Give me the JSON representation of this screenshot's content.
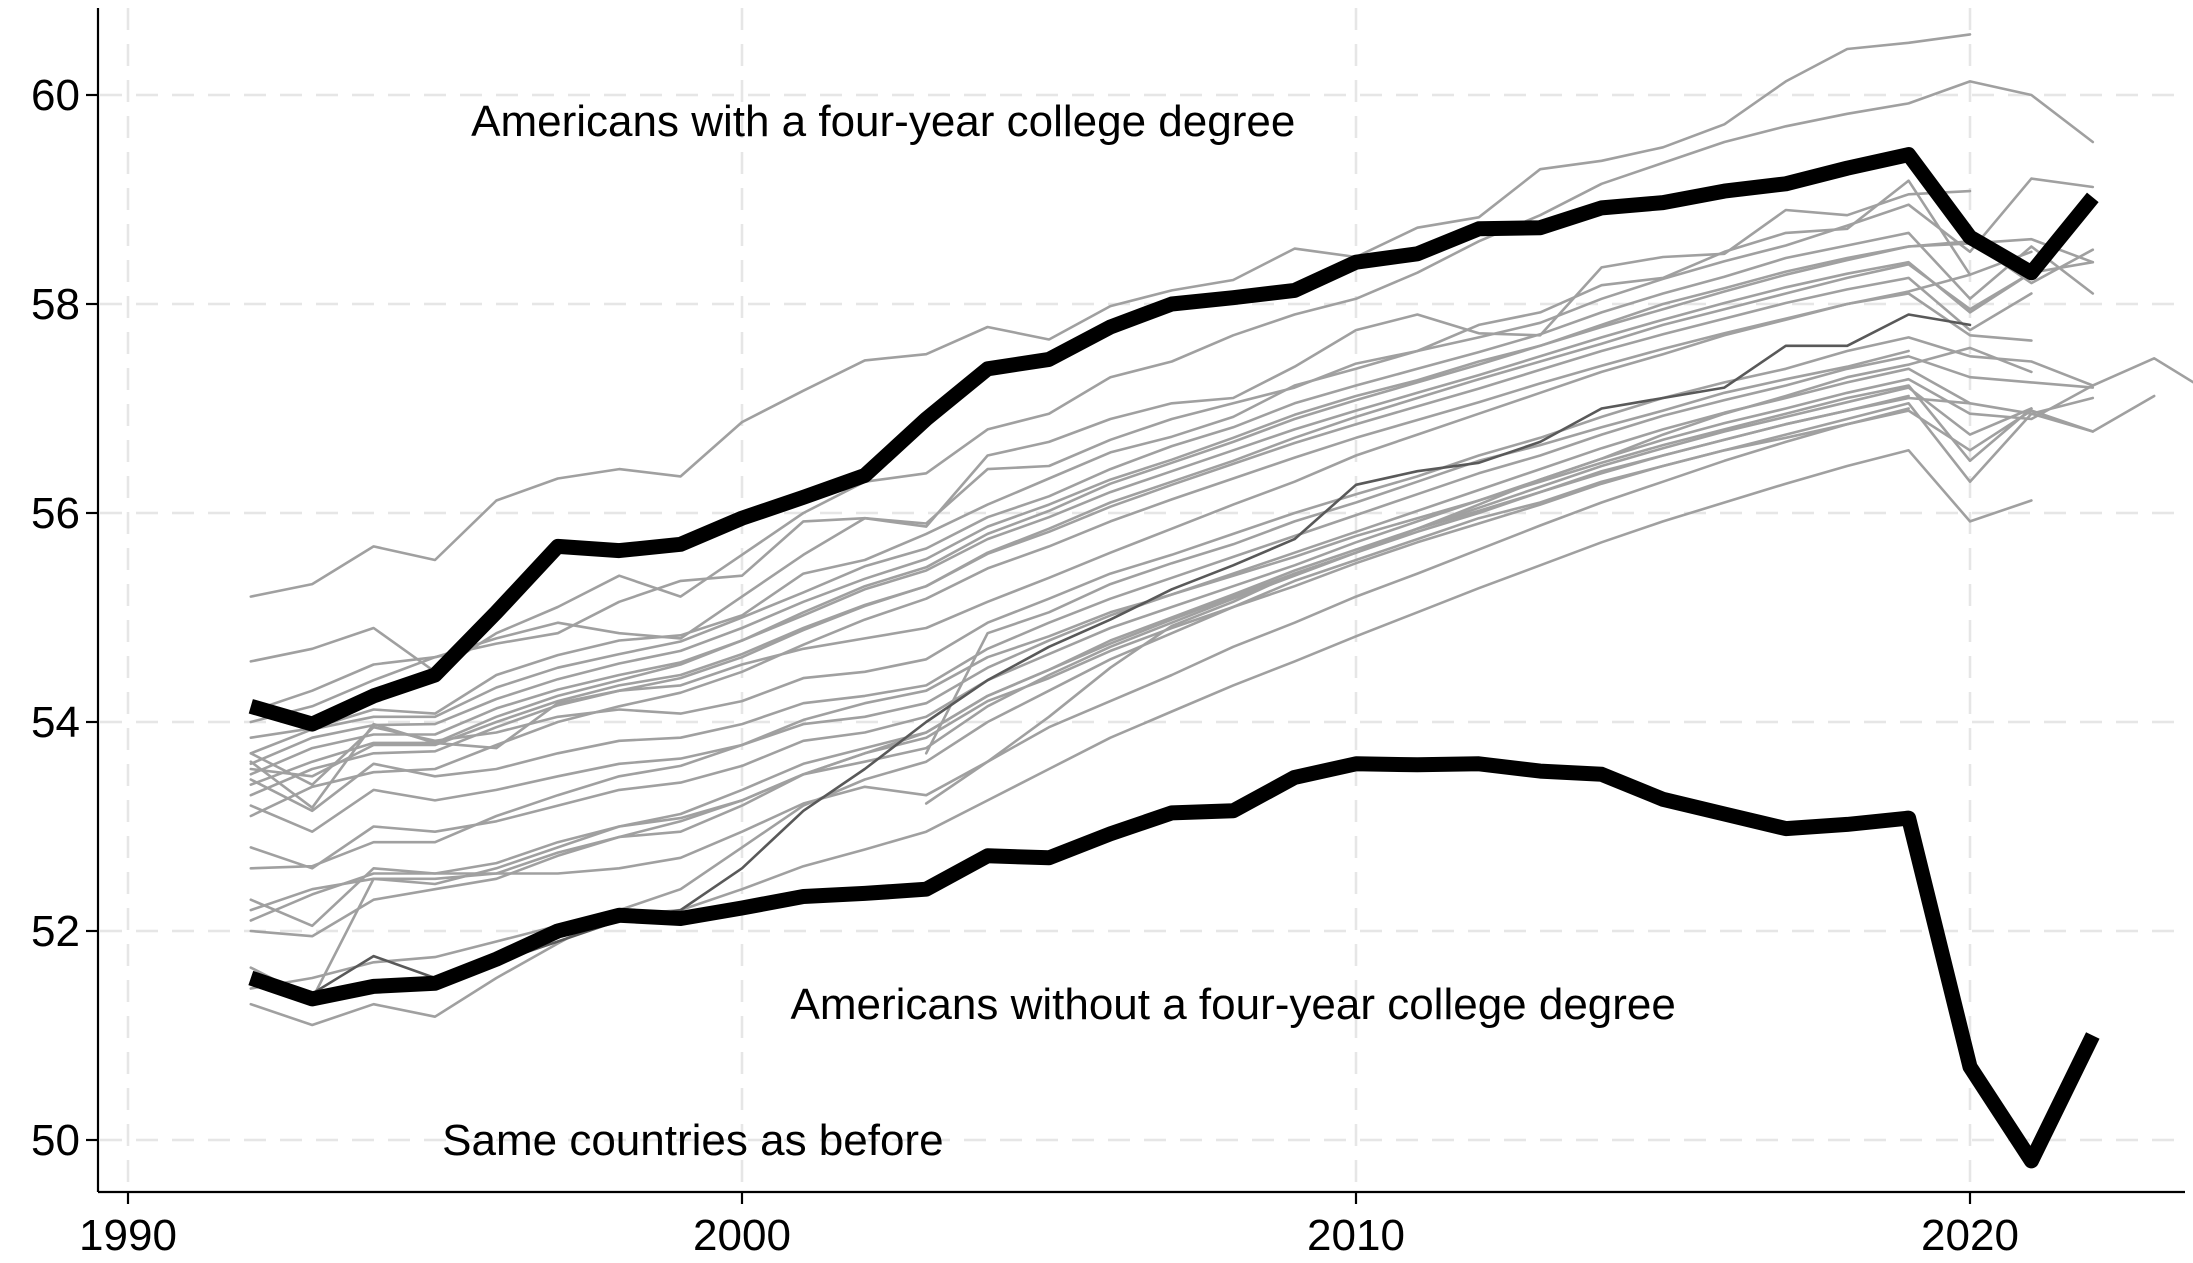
{
  "chart_data": {
    "type": "line",
    "title": "",
    "xlabel": "",
    "ylabel": "",
    "xlim": [
      1989.5,
      2023.5
    ],
    "ylim": [
      49.65,
      60.8
    ],
    "grid": true,
    "legend": "none",
    "x_ticks": [
      1990,
      2000,
      2010,
      2020
    ],
    "x_tick_labels": [
      "1990",
      "2000",
      "2010",
      "2020"
    ],
    "y_ticks": [
      50,
      52,
      54,
      56,
      58,
      60
    ],
    "y_tick_labels": [
      "50",
      "52",
      "54",
      "56",
      "58",
      "60"
    ],
    "annotations": [
      {
        "text": "Americans with a four-year college degree",
        "x": 2002.3,
        "y": 59.75
      },
      {
        "text": "Americans without a four-year college degree",
        "x": 2008.0,
        "y": 51.3
      },
      {
        "text": "Same countries as before",
        "x": 1999.2,
        "y": 50.0
      }
    ],
    "colors": {
      "highlight": "#000000",
      "background_series": "#a0a0a0",
      "dark_series": "#595959",
      "grid": "#e6e6e6"
    },
    "series": [
      {
        "role": "highlight",
        "start": 1992,
        "values": [
          54.15,
          53.98,
          54.25,
          54.45,
          55.05,
          55.68,
          55.64,
          55.7,
          55.95,
          56.15,
          56.36,
          56.9,
          57.38,
          57.47,
          57.78,
          58.0,
          58.06,
          58.13,
          58.4,
          58.48,
          58.72,
          58.73,
          58.92,
          58.97,
          59.08,
          59.15,
          59.3,
          59.43,
          58.64,
          58.3,
          59.02
        ]
      },
      {
        "role": "highlight",
        "start": 1992,
        "values": [
          51.55,
          51.35,
          51.47,
          51.5,
          51.73,
          52.0,
          52.15,
          52.12,
          52.22,
          52.33,
          52.36,
          52.4,
          52.72,
          52.7,
          52.93,
          53.13,
          53.15,
          53.47,
          53.6,
          53.59,
          53.6,
          53.53,
          53.5,
          53.26,
          53.12,
          52.98,
          53.02,
          53.08,
          50.7,
          49.8,
          51.0
        ]
      },
      {
        "role": "dark",
        "start": 1992,
        "values": [
          51.5,
          51.4,
          51.76,
          51.55,
          51.7,
          51.9,
          52.1,
          52.2,
          52.6,
          53.15,
          53.55,
          54.0,
          54.4,
          54.72,
          54.98,
          55.27,
          55.5,
          55.75,
          56.27,
          56.4,
          56.48,
          56.68,
          57.0,
          57.1,
          57.2,
          57.6,
          57.6,
          57.9,
          57.8
        ]
      },
      {
        "role": "background",
        "start": 1992,
        "values": [
          55.2,
          55.32,
          55.68,
          55.55,
          56.12,
          56.33,
          56.42,
          56.35,
          56.87,
          57.17,
          57.46,
          57.52,
          57.78,
          57.66,
          57.98,
          58.13,
          58.23,
          58.53,
          58.45,
          58.73,
          58.83,
          59.29,
          59.37,
          59.5,
          59.72,
          60.13,
          60.44,
          60.5,
          60.58
        ]
      },
      {
        "role": "background",
        "start": 1992,
        "values": [
          54.58,
          54.7,
          54.9,
          54.48,
          54.85,
          55.1,
          55.4,
          55.2,
          55.6,
          56.0,
          56.3,
          56.38,
          56.8,
          56.95,
          57.3,
          57.45,
          57.7,
          57.9,
          58.05,
          58.3,
          58.6,
          58.85,
          59.15,
          59.35,
          59.55,
          59.7,
          59.82,
          59.92,
          60.13,
          60.0,
          59.55
        ]
      },
      {
        "role": "background",
        "start": 1992,
        "values": [
          54.0,
          54.15,
          54.4,
          54.62,
          54.75,
          54.85,
          55.15,
          55.35,
          55.4,
          55.92,
          55.95,
          55.87,
          56.55,
          56.68,
          56.9,
          57.05,
          57.1,
          57.4,
          57.75,
          57.9,
          57.72,
          57.7,
          58.35,
          58.45,
          58.48,
          58.9,
          58.85,
          59.05,
          59.08
        ]
      },
      {
        "role": "background",
        "start": 1992,
        "values": [
          54.1,
          54.3,
          54.55,
          54.62,
          54.8,
          54.95,
          54.85,
          54.8,
          55.2,
          55.6,
          55.95,
          55.9,
          56.42,
          56.45,
          56.7,
          56.9,
          57.05,
          57.2,
          57.43,
          57.55,
          57.8,
          57.92,
          58.18,
          58.25,
          58.5,
          58.68,
          58.72,
          59.18,
          58.28
        ]
      },
      {
        "role": "background",
        "start": 1992,
        "values": [
          53.85,
          53.94,
          54.12,
          54.08,
          54.45,
          54.64,
          54.78,
          54.83,
          55.02,
          55.42,
          55.55,
          55.8,
          56.08,
          56.33,
          56.58,
          56.73,
          56.92,
          57.22,
          57.38,
          57.55,
          57.68,
          57.82,
          58.05,
          58.24,
          58.41,
          58.56,
          58.75,
          58.95,
          58.5,
          59.2,
          59.12
        ]
      },
      {
        "role": "background",
        "start": 1992,
        "values": [
          53.7,
          53.93,
          54.05,
          54.05,
          54.33,
          54.52,
          54.65,
          54.77,
          55.0,
          55.24,
          55.49,
          55.66,
          55.96,
          56.16,
          56.42,
          56.64,
          56.82,
          57.05,
          57.22,
          57.38,
          57.54,
          57.71,
          57.92,
          58.1,
          58.26,
          58.44,
          58.56,
          58.68,
          58.05,
          58.55,
          58.1
        ]
      },
      {
        "role": "background",
        "start": 1992,
        "values": [
          53.6,
          53.85,
          53.97,
          53.98,
          54.22,
          54.41,
          54.56,
          54.68,
          54.9,
          55.15,
          55.37,
          55.56,
          55.87,
          56.08,
          56.32,
          56.51,
          56.72,
          56.94,
          57.12,
          57.27,
          57.45,
          57.6,
          57.8,
          58.0,
          58.15,
          58.31,
          58.44,
          58.55,
          58.6,
          58.2,
          58.52
        ]
      },
      {
        "role": "background",
        "start": 1992,
        "values": [
          53.5,
          53.75,
          53.88,
          53.88,
          54.13,
          54.31,
          54.45,
          54.57,
          54.78,
          55.02,
          55.27,
          55.45,
          55.75,
          55.96,
          56.2,
          56.4,
          56.6,
          56.8,
          56.98,
          57.15,
          57.32,
          57.5,
          57.68,
          57.85,
          58.01,
          58.16,
          58.29,
          58.4,
          57.92,
          58.3,
          58.4
        ]
      },
      {
        "role": "background",
        "start": 1992,
        "values": [
          53.3,
          53.55,
          53.7,
          53.72,
          53.95,
          54.16,
          54.3,
          54.42,
          54.62,
          54.88,
          55.11,
          55.3,
          55.61,
          55.82,
          56.06,
          56.27,
          56.47,
          56.67,
          56.85,
          57.02,
          57.19,
          57.37,
          57.55,
          57.71,
          57.86,
          58.01,
          58.14,
          58.25,
          57.75,
          58.1
        ]
      },
      {
        "role": "background",
        "start": 1992,
        "values": [
          53.1,
          53.38,
          53.52,
          53.55,
          53.78,
          54.0,
          54.15,
          54.28,
          54.48,
          54.74,
          54.98,
          55.18,
          55.47,
          55.68,
          55.92,
          56.13,
          56.33,
          56.53,
          56.72,
          56.89,
          57.06,
          57.24,
          57.41,
          57.57,
          57.72,
          57.86,
          58.0,
          58.1,
          57.7,
          57.65
        ]
      },
      {
        "role": "background",
        "start": 1992,
        "values": [
          53.7,
          53.4,
          53.95,
          53.82,
          53.9,
          54.05,
          54.12,
          54.08,
          54.2,
          54.42,
          54.48,
          54.6,
          54.95,
          55.18,
          55.42,
          55.6,
          55.8,
          56.0,
          56.18,
          56.35,
          56.55,
          56.72,
          56.92,
          57.1,
          57.25,
          57.38,
          57.55,
          57.68,
          57.5,
          57.45,
          57.22
        ]
      },
      {
        "role": "background",
        "start": 1992,
        "values": [
          53.45,
          53.15,
          53.6,
          53.48,
          53.55,
          53.7,
          53.82,
          53.85,
          53.98,
          54.18,
          54.25,
          54.35,
          54.7,
          54.95,
          55.18,
          55.38,
          55.58,
          55.78,
          55.98,
          56.18,
          56.38,
          56.55,
          56.75,
          56.93,
          57.08,
          57.22,
          57.38,
          57.5,
          57.3,
          57.25,
          57.2
        ]
      },
      {
        "role": "background",
        "start": 1992,
        "values": [
          53.2,
          52.95,
          53.35,
          53.25,
          53.35,
          53.48,
          53.6,
          53.65,
          53.78,
          53.98,
          54.05,
          54.18,
          54.52,
          54.78,
          55.02,
          55.22,
          55.42,
          55.62,
          55.82,
          56.02,
          56.22,
          56.42,
          56.62,
          56.8,
          56.96,
          57.1,
          57.25,
          57.38,
          57.05,
          56.95,
          56.78
        ]
      },
      {
        "role": "background",
        "start": 1992,
        "values": [
          52.8,
          52.6,
          53.0,
          52.95,
          53.05,
          53.2,
          53.35,
          53.42,
          53.58,
          53.82,
          53.9,
          54.05,
          54.4,
          54.65,
          54.9,
          55.1,
          55.3,
          55.5,
          55.72,
          55.92,
          56.12,
          56.32,
          56.52,
          56.7,
          56.86,
          57.0,
          57.15,
          57.28,
          56.95,
          56.9,
          57.22,
          57.48,
          57.12
        ]
      },
      {
        "role": "background",
        "start": 1992,
        "values": [
          52.6,
          52.62,
          52.85,
          52.85,
          53.1,
          53.3,
          53.48,
          53.58,
          53.78,
          54.02,
          54.18,
          54.3,
          54.62,
          54.82,
          55.05,
          55.22,
          55.4,
          55.58,
          55.78,
          55.95,
          56.12,
          56.3,
          56.48,
          56.65,
          56.8,
          56.95,
          57.1,
          57.22,
          56.5,
          57.0
        ]
      },
      {
        "role": "background",
        "start": 1992,
        "values": [
          52.3,
          52.05,
          52.6,
          52.55,
          52.65,
          52.85,
          53.0,
          53.08,
          53.25,
          53.5,
          53.62,
          53.75,
          54.15,
          54.45,
          54.72,
          54.95,
          55.18,
          55.4,
          55.62,
          55.85,
          56.05,
          56.25,
          56.45,
          56.62,
          56.78,
          56.92,
          57.06,
          57.2,
          56.75,
          57.0
        ]
      },
      {
        "role": "background",
        "start": 1992,
        "values": [
          52.0,
          51.95,
          52.3,
          52.4,
          52.5,
          52.72,
          52.9,
          53.05,
          53.25,
          53.5,
          53.7,
          53.85,
          54.2,
          54.42,
          54.68,
          54.9,
          55.1,
          55.3,
          55.52,
          55.72,
          55.9,
          56.08,
          56.28,
          56.45,
          56.6,
          56.75,
          56.9,
          57.05,
          56.3,
          56.95,
          57.1
        ]
      },
      {
        "role": "background",
        "start": 1992,
        "values": [
          52.2,
          52.4,
          52.5,
          52.45,
          52.6,
          52.8,
          53.0,
          53.12,
          53.35,
          53.6,
          53.75,
          53.9,
          54.25,
          54.5,
          54.75,
          54.98,
          55.2,
          55.42,
          55.62,
          55.82,
          56.0,
          56.2,
          56.4,
          56.55,
          56.7,
          56.85,
          56.98,
          57.12
        ]
      },
      {
        "role": "background",
        "start": 1992,
        "values": [
          51.65,
          51.35,
          52.5,
          52.5,
          52.55,
          52.75,
          52.9,
          52.95,
          53.2,
          53.5,
          53.7,
          53.9,
          54.25,
          54.5,
          54.78,
          55.0,
          55.22,
          55.45,
          55.65,
          55.85,
          56.02,
          56.2,
          56.38,
          56.55,
          56.7,
          56.85,
          56.98,
          57.1,
          57.05
        ]
      },
      {
        "role": "background",
        "start": 1992,
        "values": [
          51.3,
          51.1,
          51.3,
          51.18,
          51.55,
          51.88,
          52.2,
          52.4,
          52.8,
          53.2,
          53.45,
          53.62,
          54.0,
          54.3,
          54.6,
          54.85,
          55.1,
          55.35,
          55.55,
          55.75,
          55.95,
          56.1,
          56.3,
          56.45,
          56.6,
          56.72,
          56.85,
          56.98,
          56.6,
          56.98,
          56.78,
          57.12
        ]
      },
      {
        "role": "background",
        "start": 1992,
        "values": [
          51.45,
          51.55,
          51.7,
          51.75,
          51.9,
          52.05,
          52.15,
          52.2,
          52.4,
          52.62,
          52.78,
          52.95,
          53.25,
          53.55,
          53.85,
          54.1,
          54.35,
          54.58,
          54.82,
          55.05,
          55.28,
          55.5,
          55.72,
          55.92,
          56.1,
          56.28,
          56.45,
          56.6,
          55.92,
          56.12
        ]
      },
      {
        "role": "background",
        "start": 1992,
        "values": [
          52.1,
          52.35,
          52.55,
          52.55,
          52.55,
          52.55,
          52.6,
          52.7,
          52.95,
          53.22,
          53.38,
          53.3,
          53.62,
          53.95,
          54.2,
          54.45,
          54.72,
          54.95,
          55.2,
          55.42,
          55.65,
          55.88,
          56.1,
          56.3,
          56.5,
          56.68,
          56.85,
          57.0
        ]
      },
      {
        "role": "background",
        "start": 1992,
        "values": [
          53.62,
          53.18,
          53.98,
          53.8,
          53.75,
          54.18,
          54.3,
          54.35,
          54.55,
          54.7,
          54.8,
          54.9,
          55.15,
          55.38,
          55.62,
          55.85,
          56.08,
          56.3,
          56.55,
          56.75,
          56.95,
          57.15,
          57.35,
          57.52,
          57.7,
          57.85,
          58.0,
          58.12,
          58.28,
          58.5
        ]
      },
      {
        "role": "background",
        "start": 1992,
        "values": [
          53.4,
          53.62,
          53.8,
          53.8,
          54.05,
          54.25,
          54.4,
          54.55,
          54.78,
          55.05,
          55.3,
          55.48,
          55.8,
          56.02,
          56.28,
          56.48,
          56.68,
          56.9,
          57.08,
          57.25,
          57.42,
          57.6,
          57.78,
          57.95,
          58.12,
          58.28,
          58.42,
          58.55,
          58.58,
          58.62,
          58.4
        ]
      },
      {
        "role": "background",
        "start": 1992,
        "values": [
          53.55,
          53.48,
          53.78,
          53.78,
          54.0,
          54.2,
          54.35,
          54.45,
          54.65,
          54.9,
          55.12,
          55.3,
          55.62,
          55.85,
          56.1,
          56.3,
          56.5,
          56.72,
          56.92,
          57.1,
          57.28,
          57.45,
          57.62,
          57.8,
          57.95,
          58.1,
          58.25,
          58.38,
          57.95,
          58.3
        ]
      },
      {
        "role": "background",
        "start": 2003,
        "values": [
          53.22,
          53.62,
          54.05,
          54.52,
          54.92,
          55.15,
          55.42,
          55.62,
          55.85,
          56.08,
          56.32,
          56.52,
          56.75,
          56.95,
          57.12,
          57.3,
          57.42,
          57.58,
          57.35
        ]
      },
      {
        "role": "background",
        "start": 2003,
        "values": [
          53.7,
          54.85,
          55.05,
          55.32,
          55.52,
          55.7,
          55.92,
          56.1,
          56.3,
          56.5,
          56.65,
          56.82,
          56.98,
          57.15,
          57.28,
          57.4,
          57.55
        ]
      }
    ]
  }
}
